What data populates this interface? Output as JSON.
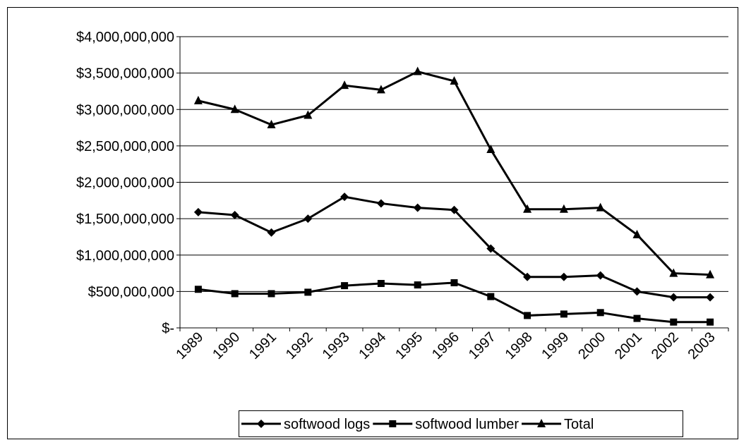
{
  "chart_data": {
    "type": "line",
    "categories": [
      "1989",
      "1990",
      "1991",
      "1992",
      "1993",
      "1994",
      "1995",
      "1996",
      "1997",
      "1998",
      "1999",
      "2000",
      "2001",
      "2002",
      "2003"
    ],
    "series": [
      {
        "name": "softwood logs",
        "color": "#000000",
        "marker": "diamond",
        "values": [
          1590000000,
          1550000000,
          1310000000,
          1500000000,
          1800000000,
          1710000000,
          1650000000,
          1620000000,
          1090000000,
          700000000,
          700000000,
          720000000,
          500000000,
          420000000,
          420000000
        ]
      },
      {
        "name": "softwood lumber",
        "color": "#000000",
        "marker": "square",
        "values": [
          530000000,
          470000000,
          470000000,
          490000000,
          580000000,
          610000000,
          590000000,
          620000000,
          430000000,
          170000000,
          190000000,
          210000000,
          130000000,
          80000000,
          80000000
        ]
      },
      {
        "name": "Total",
        "color": "#000000",
        "marker": "triangle",
        "values": [
          3120000000,
          3000000000,
          2790000000,
          2920000000,
          3330000000,
          3270000000,
          3520000000,
          3390000000,
          2450000000,
          1630000000,
          1630000000,
          1650000000,
          1280000000,
          750000000,
          730000000
        ]
      }
    ],
    "ylim": [
      0,
      4000000000
    ],
    "yticks": [
      {
        "value": 0,
        "label": "$-"
      },
      {
        "value": 500000000,
        "label": "$500,000,000"
      },
      {
        "value": 1000000000,
        "label": "$1,000,000,000"
      },
      {
        "value": 1500000000,
        "label": "$1,500,000,000"
      },
      {
        "value": 2000000000,
        "label": "$2,000,000,000"
      },
      {
        "value": 2500000000,
        "label": "$2,500,000,000"
      },
      {
        "value": 3000000000,
        "label": "$3,000,000,000"
      },
      {
        "value": 3500000000,
        "label": "$3,500,000,000"
      },
      {
        "value": 4000000000,
        "label": "$4,000,000,000"
      }
    ],
    "grid": true,
    "legend": "bottom"
  }
}
